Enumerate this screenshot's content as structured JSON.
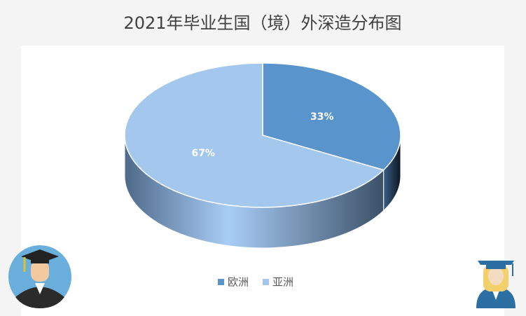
{
  "chart_data": {
    "type": "pie",
    "title": "2021年毕业生国（境）外深造分布图",
    "categories": [
      "欧洲",
      "亚洲"
    ],
    "values": [
      33,
      67
    ],
    "value_labels": [
      "33%",
      "67%"
    ],
    "colors": [
      "#5a94cc",
      "#a4c7ed"
    ],
    "legend": "bottom"
  }
}
